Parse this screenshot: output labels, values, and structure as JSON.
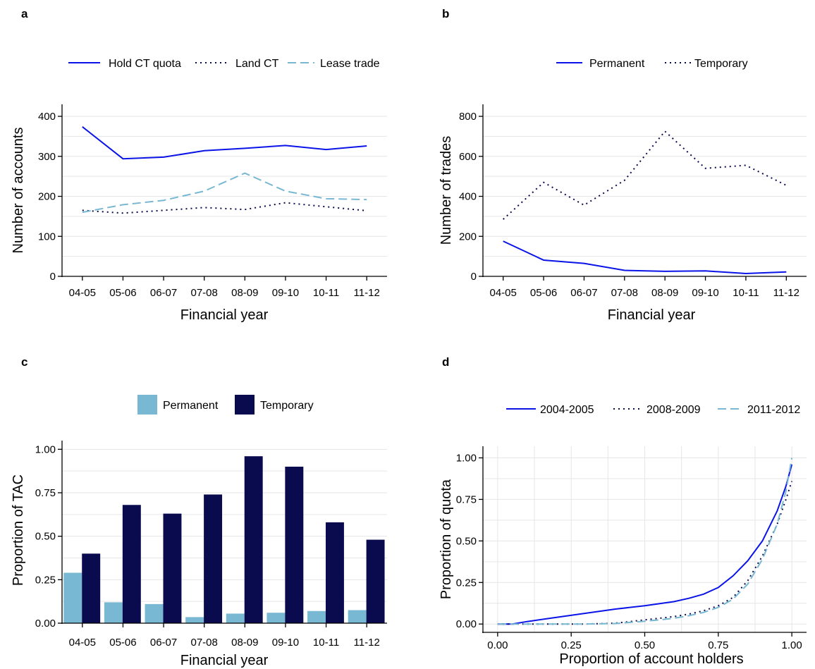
{
  "colors": {
    "blue": "#0a14e8",
    "navy": "#0a0a4e",
    "light": "#79b8d2"
  },
  "chart_data": [
    {
      "panel": "a",
      "type": "line",
      "xlabel": "Financial year",
      "ylabel": "Number of accounts",
      "categories": [
        "04-05",
        "05-06",
        "06-07",
        "07-08",
        "08-09",
        "09-10",
        "10-11",
        "11-12"
      ],
      "ylim": [
        0,
        430
      ],
      "yticks": [
        0,
        100,
        200,
        300,
        400
      ],
      "grid": "horizontal",
      "legend_position": "top",
      "series": [
        {
          "name": "Hold CT quota",
          "style": "solid",
          "color": "#0a14e8",
          "values": [
            374,
            294,
            298,
            314,
            320,
            327,
            317,
            326
          ]
        },
        {
          "name": "Land CT",
          "style": "dotted",
          "color": "#0a0a4e",
          "values": [
            165,
            158,
            165,
            172,
            167,
            184,
            174,
            164
          ]
        },
        {
          "name": "Lease trade",
          "style": "dashed",
          "color": "#79b8d2",
          "values": [
            160,
            179,
            190,
            213,
            258,
            213,
            194,
            192
          ]
        }
      ]
    },
    {
      "panel": "b",
      "type": "line",
      "xlabel": "Financial year",
      "ylabel": "Number of trades",
      "categories": [
        "04-05",
        "05-06",
        "06-07",
        "07-08",
        "08-09",
        "09-10",
        "10-11",
        "11-12"
      ],
      "ylim": [
        0,
        860
      ],
      "yticks": [
        0,
        200,
        400,
        600,
        800
      ],
      "grid": "horizontal",
      "legend_position": "top",
      "series": [
        {
          "name": "Permanent",
          "style": "solid",
          "color": "#0a14e8",
          "values": [
            176,
            81,
            65,
            30,
            25,
            27,
            14,
            22
          ]
        },
        {
          "name": "Temporary",
          "style": "dotted",
          "color": "#0a0a4e",
          "values": [
            285,
            470,
            356,
            480,
            725,
            540,
            555,
            455
          ]
        }
      ]
    },
    {
      "panel": "c",
      "type": "bar",
      "xlabel": "Financial year",
      "ylabel": "Proportion of TAC",
      "categories": [
        "04-05",
        "05-06",
        "06-07",
        "07-08",
        "08-09",
        "09-10",
        "10-11",
        "11-12"
      ],
      "ylim": [
        0,
        1.05
      ],
      "yticks": [
        "0.00",
        "0.25",
        "0.50",
        "0.75",
        "1.00"
      ],
      "grid": "horizontal",
      "legend_position": "top",
      "series": [
        {
          "name": "Permanent",
          "color": "#79b8d2",
          "values": [
            0.29,
            0.12,
            0.11,
            0.035,
            0.055,
            0.06,
            0.07,
            0.075
          ]
        },
        {
          "name": "Temporary",
          "color": "#0a0a4e",
          "values": [
            0.4,
            0.68,
            0.63,
            0.74,
            0.96,
            0.9,
            0.58,
            0.48
          ]
        }
      ]
    },
    {
      "panel": "d",
      "type": "line",
      "xlabel": "Proportion of account holders",
      "ylabel": "Proportion of quota",
      "xlim": [
        -0.05,
        1.05
      ],
      "ylim": [
        -0.05,
        1.07
      ],
      "xticks": [
        "0.00",
        "0.25",
        "0.50",
        "0.75",
        "1.00"
      ],
      "yticks": [
        "0.00",
        "0.25",
        "0.50",
        "0.75",
        "1.00"
      ],
      "grid": "both",
      "legend_position": "top",
      "series": [
        {
          "name": "2004-2005",
          "style": "solid",
          "color": "#0a14e8",
          "x": [
            0.0,
            0.05,
            0.1,
            0.2,
            0.3,
            0.4,
            0.5,
            0.6,
            0.65,
            0.7,
            0.75,
            0.8,
            0.85,
            0.9,
            0.95,
            0.98,
            1.0
          ],
          "y": [
            0.0,
            0.0,
            0.015,
            0.04,
            0.065,
            0.09,
            0.11,
            0.135,
            0.155,
            0.18,
            0.22,
            0.29,
            0.38,
            0.5,
            0.68,
            0.83,
            0.96
          ]
        },
        {
          "name": "2008-2009",
          "style": "dotted",
          "color": "#0a0a4e",
          "x": [
            0.0,
            0.2,
            0.3,
            0.4,
            0.45,
            0.5,
            0.55,
            0.6,
            0.65,
            0.7,
            0.75,
            0.8,
            0.85,
            0.9,
            0.95,
            0.98,
            1.0
          ],
          "y": [
            0.0,
            0.0,
            0.0,
            0.005,
            0.015,
            0.025,
            0.035,
            0.045,
            0.06,
            0.08,
            0.11,
            0.16,
            0.26,
            0.41,
            0.6,
            0.75,
            0.86
          ]
        },
        {
          "name": "2011-2012",
          "style": "dashed",
          "color": "#79b8d2",
          "x": [
            0.0,
            0.2,
            0.3,
            0.4,
            0.45,
            0.5,
            0.55,
            0.6,
            0.65,
            0.7,
            0.75,
            0.8,
            0.85,
            0.9,
            0.95,
            0.98,
            1.0
          ],
          "y": [
            0.0,
            0.0,
            0.0,
            0.003,
            0.01,
            0.017,
            0.025,
            0.035,
            0.05,
            0.07,
            0.1,
            0.15,
            0.24,
            0.39,
            0.6,
            0.8,
            1.0
          ]
        }
      ]
    }
  ]
}
